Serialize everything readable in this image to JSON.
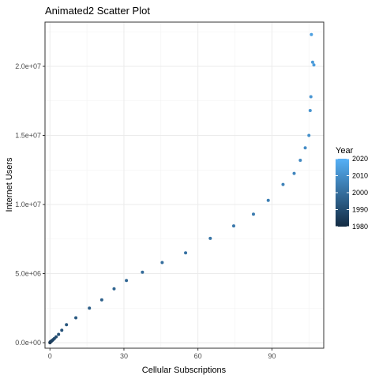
{
  "chart_data": {
    "type": "scatter",
    "title": "Animated2 Scatter Plot",
    "xlabel": "Cellular Subscriptions",
    "ylabel": "Internet Users",
    "xlim": [
      -2,
      111
    ],
    "ylim": [
      -400000,
      23200000
    ],
    "x_ticks": [
      0,
      30,
      60,
      90
    ],
    "x_tick_labels": [
      "0",
      "30",
      "60",
      "90"
    ],
    "y_ticks": [
      0,
      5000000,
      10000000,
      15000000,
      20000000
    ],
    "y_tick_labels": [
      "0.0e+00",
      "5.0e+06",
      "1.0e+07",
      "1.5e+07",
      "2.0e+07"
    ],
    "grid": true,
    "legend": {
      "title": "Year",
      "placement": "right",
      "min": 1980,
      "max": 2020,
      "ticks": [
        1980,
        1990,
        2000,
        2010,
        2020
      ],
      "tick_labels": [
        "1980",
        "1990",
        "2000",
        "2010",
        "2020"
      ],
      "color_low": "#132b43",
      "color_high": "#56b1f7"
    },
    "points": [
      {
        "x": 0.0,
        "y": 0,
        "year": 1980
      },
      {
        "x": 0.05,
        "y": 20000,
        "year": 1981
      },
      {
        "x": 0.1,
        "y": 40000,
        "year": 1982
      },
      {
        "x": 0.2,
        "y": 60000,
        "year": 1983
      },
      {
        "x": 0.3,
        "y": 80000,
        "year": 1984
      },
      {
        "x": 0.5,
        "y": 100000,
        "year": 1985
      },
      {
        "x": 0.7,
        "y": 130000,
        "year": 1986
      },
      {
        "x": 1.0,
        "y": 170000,
        "year": 1987
      },
      {
        "x": 1.3,
        "y": 220000,
        "year": 1988
      },
      {
        "x": 1.8,
        "y": 300000,
        "year": 1989
      },
      {
        "x": 2.5,
        "y": 420000,
        "year": 1990
      },
      {
        "x": 3.5,
        "y": 600000,
        "year": 1991
      },
      {
        "x": 4.8,
        "y": 900000,
        "year": 1992
      },
      {
        "x": 6.7,
        "y": 1300000,
        "year": 1993
      },
      {
        "x": 10.5,
        "y": 1800000,
        "year": 1994
      },
      {
        "x": 16.0,
        "y": 2500000,
        "year": 1995
      },
      {
        "x": 21.0,
        "y": 3100000,
        "year": 1996
      },
      {
        "x": 26.0,
        "y": 3900000,
        "year": 1997
      },
      {
        "x": 31.0,
        "y": 4500000,
        "year": 1998
      },
      {
        "x": 37.5,
        "y": 5100000,
        "year": 1999
      },
      {
        "x": 45.5,
        "y": 5800000,
        "year": 2000
      },
      {
        "x": 55.0,
        "y": 6500000,
        "year": 2001
      },
      {
        "x": 65.0,
        "y": 7550000,
        "year": 2002
      },
      {
        "x": 74.5,
        "y": 8450000,
        "year": 2003
      },
      {
        "x": 82.5,
        "y": 9300000,
        "year": 2004
      },
      {
        "x": 88.5,
        "y": 10300000,
        "year": 2005
      },
      {
        "x": 94.5,
        "y": 11450000,
        "year": 2006
      },
      {
        "x": 99.0,
        "y": 12250000,
        "year": 2007
      },
      {
        "x": 101.5,
        "y": 13200000,
        "year": 2008
      },
      {
        "x": 103.5,
        "y": 14100000,
        "year": 2009
      },
      {
        "x": 105.0,
        "y": 15000000,
        "year": 2010
      },
      {
        "x": 105.5,
        "y": 16800000,
        "year": 2011
      },
      {
        "x": 105.8,
        "y": 17800000,
        "year": 2012
      },
      {
        "x": 106.5,
        "y": 20300000,
        "year": 2013
      },
      {
        "x": 107.0,
        "y": 20100000,
        "year": 2014
      },
      {
        "x": 106.0,
        "y": 22300000,
        "year": 2015
      }
    ]
  }
}
